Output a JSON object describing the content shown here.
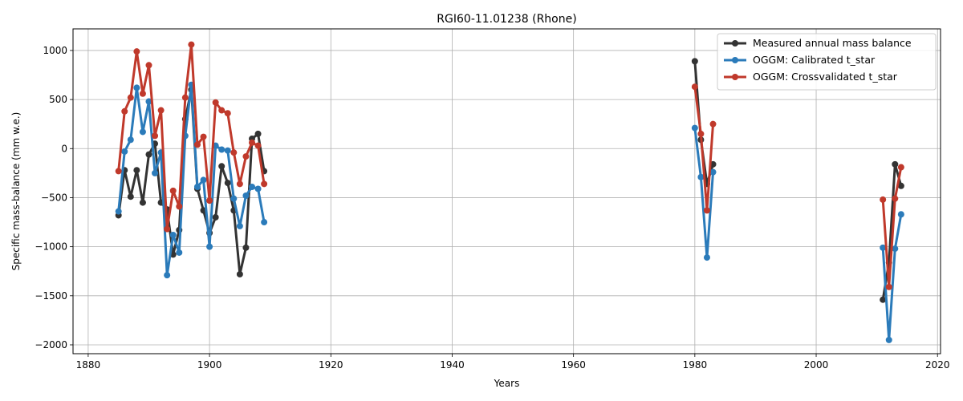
{
  "chart_data": {
    "type": "line",
    "title": "RGI60-11.01238 (Rhone)",
    "xlabel": "Years",
    "ylabel": "Specific mass-balance (mm w.e.)",
    "xlim": [
      1877.5,
      2020.5
    ],
    "ylim": [
      -2090,
      1220
    ],
    "xticks": [
      1880,
      1900,
      1920,
      1940,
      1960,
      1980,
      2000,
      2020
    ],
    "yticks": [
      -2000,
      -1500,
      -1000,
      -500,
      0,
      500,
      1000
    ],
    "grid": true,
    "legend_position": "top-right",
    "series": [
      {
        "name": "Measured annual mass balance",
        "color": "#333333",
        "segments": [
          {
            "x": [
              1885,
              1886,
              1887,
              1888,
              1889,
              1890,
              1891,
              1892,
              1893,
              1894,
              1895,
              1896,
              1897,
              1898,
              1899,
              1900,
              1901,
              1902,
              1903,
              1904,
              1905,
              1906,
              1907,
              1908,
              1909
            ],
            "y": [
              -680,
              -220,
              -490,
              -220,
              -550,
              -60,
              50,
              -550,
              -620,
              -1080,
              -830,
              300,
              600,
              -410,
              -630,
              -860,
              -700,
              -180,
              -350,
              -630,
              -1280,
              -1010,
              100,
              150,
              -230
            ]
          },
          {
            "x": [
              1980,
              1981,
              1982,
              1983
            ],
            "y": [
              890,
              90,
              -360,
              -160
            ]
          },
          {
            "x": [
              2011,
              2012,
              2013,
              2014
            ],
            "y": [
              -1540,
              -1160,
              -160,
              -380
            ]
          }
        ]
      },
      {
        "name": "OGGM: Calibrated t_star",
        "color": "#2b7bba",
        "segments": [
          {
            "x": [
              1885,
              1886,
              1887,
              1888,
              1889,
              1890,
              1891,
              1892,
              1893,
              1894,
              1895,
              1896,
              1897,
              1898,
              1899,
              1900,
              1901,
              1902,
              1903,
              1904,
              1905,
              1906,
              1907,
              1908,
              1909
            ],
            "y": [
              -640,
              -30,
              90,
              620,
              170,
              480,
              -250,
              -40,
              -1290,
              -880,
              -1060,
              130,
              650,
              -390,
              -320,
              -1000,
              30,
              -10,
              -20,
              -510,
              -790,
              -480,
              -390,
              -410,
              -750
            ]
          },
          {
            "x": [
              1980,
              1981,
              1982,
              1983
            ],
            "y": [
              210,
              -290,
              -1110,
              -240
            ]
          },
          {
            "x": [
              2011,
              2012,
              2013,
              2014
            ],
            "y": [
              -1010,
              -1950,
              -1020,
              -670
            ]
          }
        ]
      },
      {
        "name": "OGGM: Crossvalidated t_star",
        "color": "#c0392b",
        "segments": [
          {
            "x": [
              1885,
              1886,
              1887,
              1888,
              1889,
              1890,
              1891,
              1892,
              1893,
              1894,
              1895,
              1896,
              1897,
              1898,
              1899,
              1900,
              1901,
              1902,
              1903,
              1904,
              1905,
              1906,
              1907,
              1908,
              1909
            ],
            "y": [
              -230,
              380,
              520,
              990,
              560,
              850,
              130,
              390,
              -820,
              -430,
              -590,
              520,
              1060,
              40,
              120,
              -530,
              470,
              390,
              360,
              -40,
              -360,
              -80,
              60,
              30,
              -360
            ]
          },
          {
            "x": [
              1980,
              1981,
              1982,
              1983
            ],
            "y": [
              630,
              150,
              -630,
              250
            ]
          },
          {
            "x": [
              2011,
              2012,
              2013,
              2014
            ],
            "y": [
              -520,
              -1410,
              -510,
              -190
            ]
          }
        ]
      }
    ]
  }
}
